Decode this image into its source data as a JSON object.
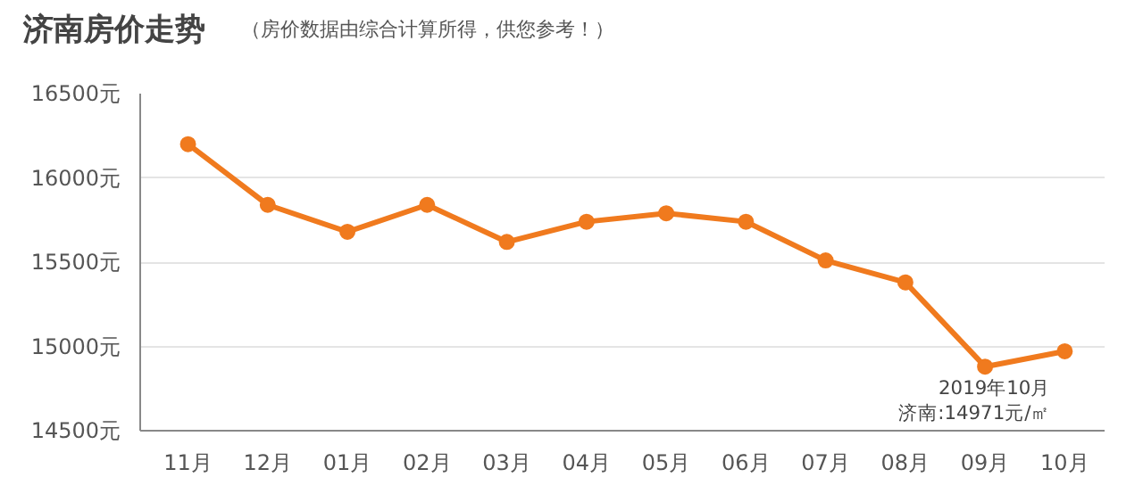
{
  "chart_data": {
    "type": "line",
    "title": "济南房价走势",
    "subtitle": "（房价数据由综合计算所得，供您参考！）",
    "categories": [
      "11月",
      "12月",
      "01月",
      "02月",
      "03月",
      "04月",
      "05月",
      "06月",
      "07月",
      "08月",
      "09月",
      "10月"
    ],
    "series": [
      {
        "color": "#f07a1e",
        "values": [
          16200,
          15840,
          15680,
          15840,
          15620,
          15740,
          15790,
          15740,
          15510,
          15380,
          14880,
          14971
        ]
      }
    ],
    "ylim": [
      14500,
      16500
    ],
    "yticks": [
      {
        "value": 14500,
        "label": "14500元"
      },
      {
        "value": 15000,
        "label": "15000元"
      },
      {
        "value": 15500,
        "label": "15500元"
      },
      {
        "value": 16000,
        "label": "16000元"
      },
      {
        "value": 16500,
        "label": "16500元"
      }
    ],
    "grid": "y",
    "marker": "circle",
    "line_style": "solid",
    "annotations": [
      {
        "text": "2019年10月",
        "x": "10月",
        "y": 14971
      },
      {
        "text": "济南:14971元/㎡",
        "x": "10月",
        "y": 14971
      }
    ]
  }
}
